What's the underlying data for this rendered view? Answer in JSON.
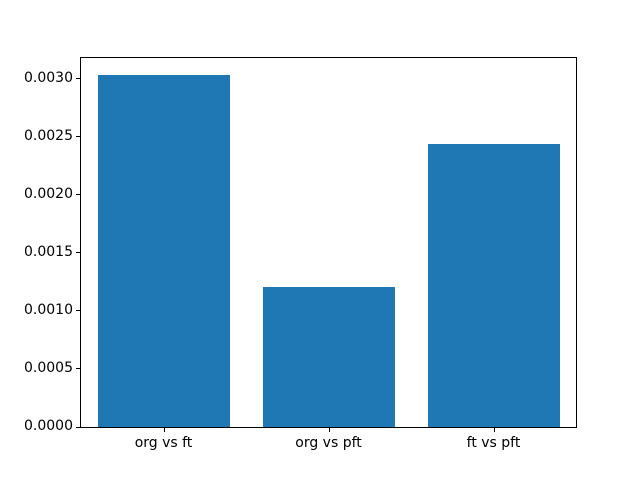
{
  "figure": {
    "background": "#ffffff",
    "frame_color": "#000000"
  },
  "chart_data": {
    "type": "bar",
    "title": "",
    "xlabel": "",
    "ylabel": "",
    "categories": [
      "org vs ft",
      "org vs pft",
      "ft vs pft"
    ],
    "values": [
      0.00303,
      0.00121,
      0.00244
    ],
    "bar_color": "#1f77b4",
    "bar_width_fraction": 0.8,
    "ylim": [
      0,
      0.00318
    ],
    "yticks": [
      {
        "value": 0.0,
        "label": "0.0000"
      },
      {
        "value": 0.0005,
        "label": "0.0005"
      },
      {
        "value": 0.001,
        "label": "0.0010"
      },
      {
        "value": 0.0015,
        "label": "0.0015"
      },
      {
        "value": 0.002,
        "label": "0.0020"
      },
      {
        "value": 0.0025,
        "label": "0.0025"
      },
      {
        "value": 0.003,
        "label": "0.0030"
      }
    ],
    "grid": false,
    "legend": null
  }
}
